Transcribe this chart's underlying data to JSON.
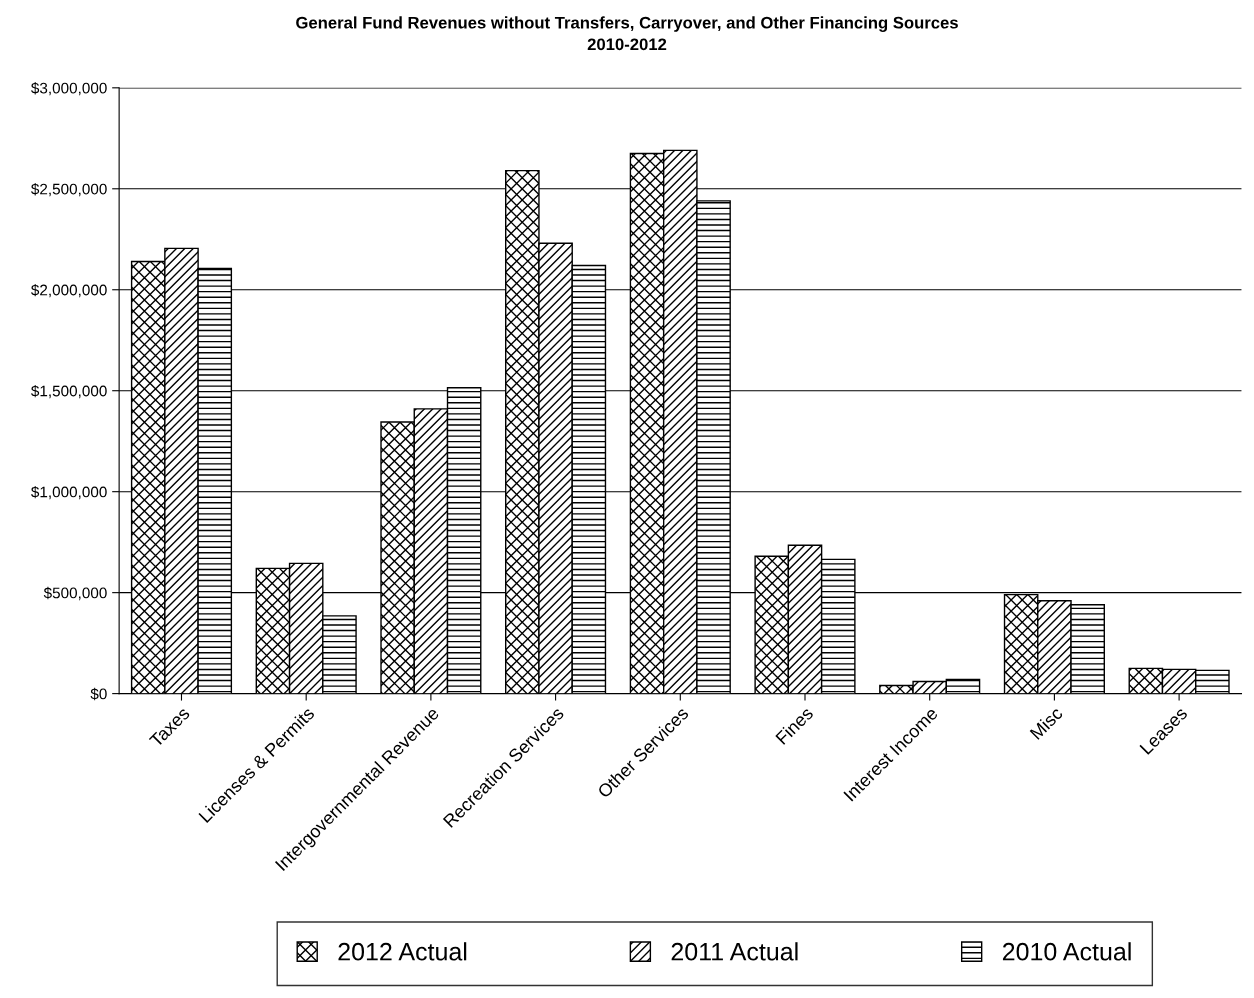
{
  "chart_data": {
    "type": "bar",
    "title": "General Fund Revenues without Transfers, Carryover, and Other Financing Sources\n2010-2012",
    "categories": [
      "Taxes",
      "Licenses & Permits",
      "Intergovernmental Revenue",
      "Recreation Services",
      "Other Services",
      "Fines",
      "Interest Income",
      "Misc",
      "Leases"
    ],
    "series": [
      {
        "name": "2012 Actual",
        "color": "#000000",
        "values": [
          2140000,
          620000,
          1345000,
          2590000,
          2675000,
          680000,
          40000,
          490000,
          125000
        ]
      },
      {
        "name": "2011 Actual",
        "color": "#000000",
        "values": [
          2205000,
          645000,
          1410000,
          2230000,
          2690000,
          735000,
          60000,
          460000,
          120000
        ]
      },
      {
        "name": "2010 Actual",
        "color": "#000000",
        "values": [
          2105000,
          385000,
          1515000,
          2120000,
          2440000,
          665000,
          70000,
          440000,
          115000
        ]
      }
    ],
    "ylim": [
      0,
      3000000
    ],
    "yticks": [
      {
        "value": 0,
        "label": "$0"
      },
      {
        "value": 500000,
        "label": "$500,000"
      },
      {
        "value": 1000000,
        "label": "$1,000,000"
      },
      {
        "value": 1500000,
        "label": "$1,500,000"
      },
      {
        "value": 2000000,
        "label": "$2,000,000"
      },
      {
        "value": 2500000,
        "label": "$2,500,000"
      },
      {
        "value": 3000000,
        "label": "$3,000,000"
      }
    ],
    "grid": "y",
    "legend": "bottom"
  }
}
